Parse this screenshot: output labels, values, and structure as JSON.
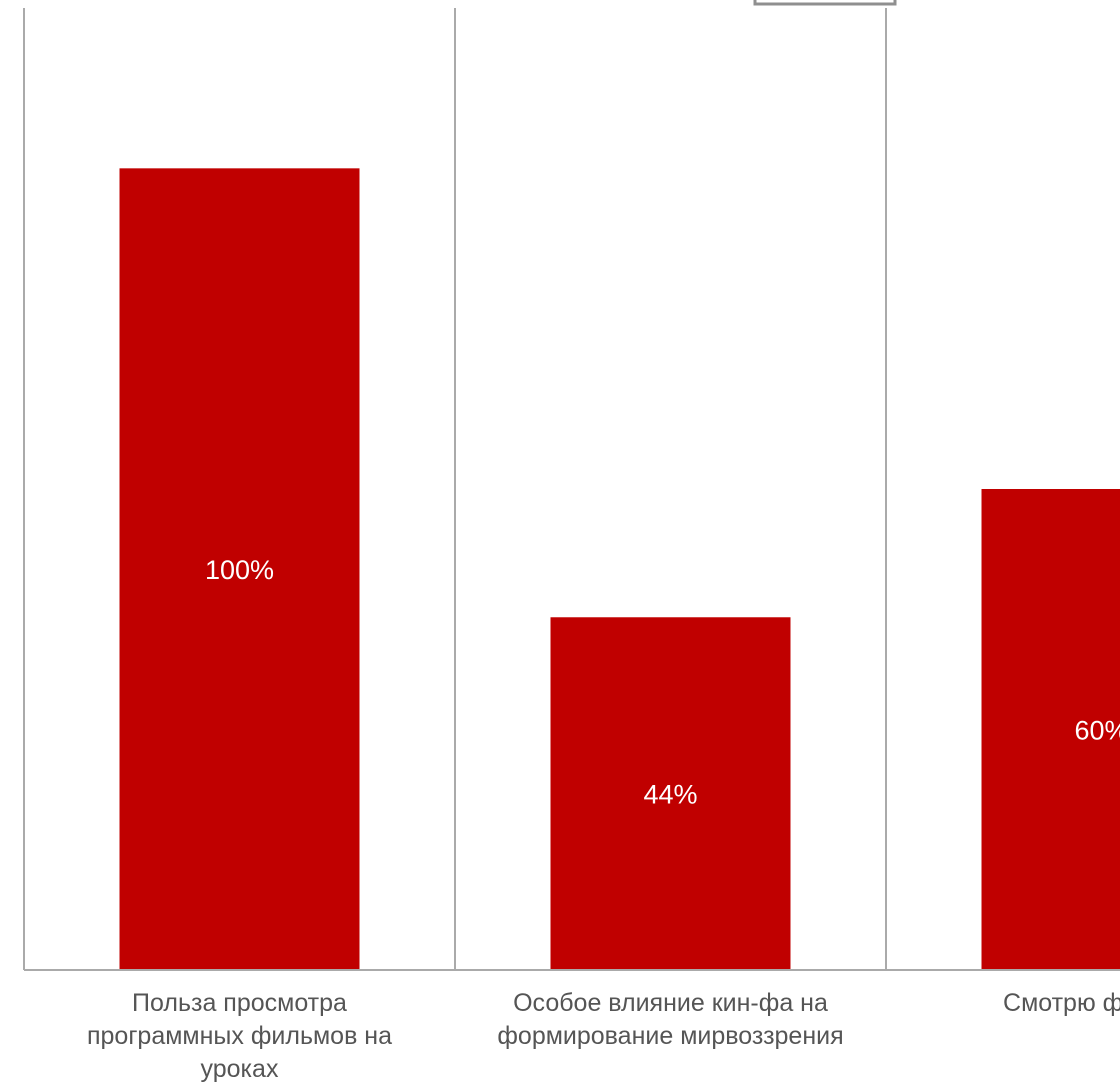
{
  "chart_data": {
    "type": "bar",
    "categories": [
      [
        "Польза просмотра",
        "программных фильмов на",
        "уроках"
      ],
      [
        "Особое влияние кин-фа на",
        "формирование мирвоззрения"
      ],
      [
        "Смотрю фильмы"
      ]
    ],
    "values": [
      100,
      44,
      60
    ],
    "data_labels": [
      "100%",
      "44%",
      "60%"
    ],
    "ylim": [
      0,
      120
    ],
    "grid": "vertical separators between categories",
    "legend": "none",
    "colors": {
      "bar": "#c00000",
      "data_label": "#ffffff",
      "axis": "#aaaaaa",
      "tick_label": "#555555"
    }
  }
}
